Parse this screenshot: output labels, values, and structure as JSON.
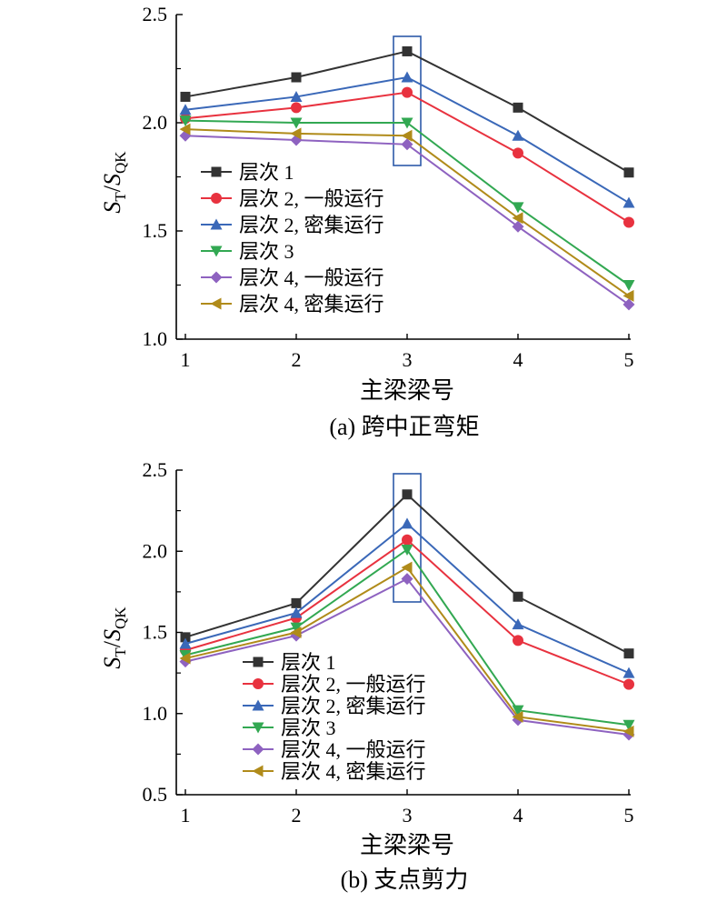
{
  "charts_ui": [
    {
      "caption": "(a) 跨中正弯矩"
    },
    {
      "caption": "(b) 支点剪力"
    }
  ],
  "chart_data": [
    {
      "type": "line",
      "caption": "(a) 跨中正弯矩",
      "xlabel": "主梁梁号",
      "ylabel_main": "S",
      "ylabel_main_sub": "T",
      "ylabel_div": "/",
      "ylabel_den": "S",
      "ylabel_den_sub": "QK",
      "x": [
        1,
        2,
        3,
        4,
        5
      ],
      "xticks": [
        "1",
        "2",
        "3",
        "4",
        "5"
      ],
      "ylim": [
        1.0,
        2.5
      ],
      "yticks": [
        "1.0",
        "1.5",
        "2.0",
        "2.5"
      ],
      "ytick_values": [
        1.0,
        1.5,
        2.0,
        2.5
      ],
      "grid": false,
      "legend_position": "left-middle",
      "highlight_box_x": 3,
      "series": [
        {
          "name": "层次 1",
          "color": "#333333",
          "marker": "square",
          "values": [
            2.12,
            2.21,
            2.33,
            2.07,
            1.77
          ]
        },
        {
          "name": "层次 2, 一般运行",
          "color": "#e8323f",
          "marker": "circle",
          "values": [
            2.02,
            2.07,
            2.14,
            1.86,
            1.54
          ]
        },
        {
          "name": "层次 2, 密集运行",
          "color": "#3a68b8",
          "marker": "triangle-up",
          "values": [
            2.06,
            2.12,
            2.21,
            1.94,
            1.63
          ]
        },
        {
          "name": "层次 3",
          "color": "#32a852",
          "marker": "triangle-down",
          "values": [
            2.01,
            2.0,
            2.0,
            1.61,
            1.25
          ]
        },
        {
          "name": "层次 4, 一般运行",
          "color": "#8e62c0",
          "marker": "diamond",
          "values": [
            1.94,
            1.92,
            1.9,
            1.52,
            1.16
          ]
        },
        {
          "name": "层次 4, 密集运行",
          "color": "#b08b1a",
          "marker": "triangle-left",
          "values": [
            1.97,
            1.95,
            1.94,
            1.56,
            1.2
          ]
        }
      ]
    },
    {
      "type": "line",
      "caption": "(b) 支点剪力",
      "xlabel": "主梁梁号",
      "ylabel_main": "S",
      "ylabel_main_sub": "T",
      "ylabel_div": "/",
      "ylabel_den": "S",
      "ylabel_den_sub": "QK",
      "x": [
        1,
        2,
        3,
        4,
        5
      ],
      "xticks": [
        "1",
        "2",
        "3",
        "4",
        "5"
      ],
      "ylim": [
        0.5,
        2.5
      ],
      "yticks": [
        "0.5",
        "1.0",
        "1.5",
        "2.0",
        "2.5"
      ],
      "ytick_values": [
        0.5,
        1.0,
        1.5,
        2.0,
        2.5
      ],
      "grid": false,
      "legend_position": "bottom-left",
      "highlight_box_x": 3,
      "series": [
        {
          "name": "层次 1",
          "color": "#333333",
          "marker": "square",
          "values": [
            1.47,
            1.68,
            2.35,
            1.72,
            1.37
          ]
        },
        {
          "name": "层次 2, 一般运行",
          "color": "#e8323f",
          "marker": "circle",
          "values": [
            1.39,
            1.59,
            2.07,
            1.45,
            1.18
          ]
        },
        {
          "name": "层次 2, 密集运行",
          "color": "#3a68b8",
          "marker": "triangle-up",
          "values": [
            1.43,
            1.62,
            2.17,
            1.55,
            1.25
          ]
        },
        {
          "name": "层次 3",
          "color": "#32a852",
          "marker": "triangle-down",
          "values": [
            1.36,
            1.53,
            2.01,
            1.02,
            0.93
          ]
        },
        {
          "name": "层次 4, 一般运行",
          "color": "#8e62c0",
          "marker": "diamond",
          "values": [
            1.32,
            1.48,
            1.83,
            0.96,
            0.87
          ]
        },
        {
          "name": "层次 4, 密集运行",
          "color": "#b08b1a",
          "marker": "triangle-left",
          "values": [
            1.34,
            1.5,
            1.9,
            0.98,
            0.89
          ]
        }
      ]
    }
  ]
}
